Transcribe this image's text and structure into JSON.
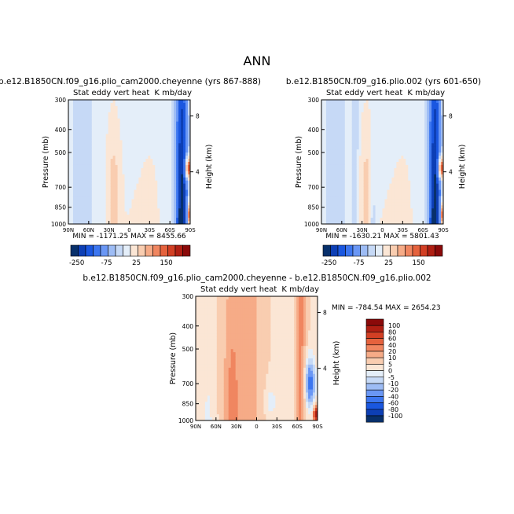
{
  "figure_title": "ANN",
  "palette_colors": [
    "#08306b",
    "#0d3fb5",
    "#1a57e0",
    "#3c76f0",
    "#6a97f5",
    "#9dbcf5",
    "#c6d9f6",
    "#e4eef9",
    "#fbe6d5",
    "#f9cdb0",
    "#f6ab87",
    "#f08660",
    "#e5623d",
    "#d23f24",
    "#b01f13",
    "#8b0a0a"
  ],
  "chart_data": [
    {
      "type": "contour",
      "title": "b.e12.B1850CN.f09_g16.plio_cam2000.cheyenne (yrs 867-888)",
      "left_label": "Stat eddy vert heat",
      "right_label": "K mb/day",
      "ylabel": "Pressure (mb)",
      "ylabel_right": "Height (km)",
      "yticks": [
        "300",
        "400",
        "500",
        "700",
        "850",
        "1000"
      ],
      "yticks_right": [
        "8",
        "4"
      ],
      "xticks": [
        "90N",
        "60N",
        "30N",
        "0",
        "30S",
        "60S",
        "90S"
      ],
      "stats": "MIN = -1171.25   MAX = 8455.66",
      "colorbar_labels": [
        "-250",
        "-75",
        "25",
        "150"
      ]
    },
    {
      "type": "contour",
      "title": "b.e12.B1850CN.f09_g16.plio.002 (yrs 601-650)",
      "left_label": "Stat eddy vert heat",
      "right_label": "K mb/day",
      "ylabel": "Pressure (mb)",
      "ylabel_right": "Height (km)",
      "yticks": [
        "300",
        "400",
        "500",
        "700",
        "850",
        "1000"
      ],
      "yticks_right": [
        "8",
        "4"
      ],
      "xticks": [
        "90N",
        "60N",
        "30N",
        "0",
        "30S",
        "60S",
        "90S"
      ],
      "stats": "MIN = -1630.21   MAX = 5801.43",
      "colorbar_labels": [
        "-250",
        "-75",
        "25",
        "150"
      ]
    },
    {
      "type": "contour",
      "title": "b.e12.B1850CN.f09_g16.plio_cam2000.cheyenne - b.e12.B1850CN.f09_g16.plio.002",
      "left_label": "Stat eddy vert heat",
      "right_label": "K mb/day",
      "ylabel": "Pressure (mb)",
      "ylabel_right": "Height (km)",
      "yticks": [
        "300",
        "400",
        "500",
        "700",
        "850",
        "1000"
      ],
      "yticks_right": [
        "8",
        "4"
      ],
      "xticks": [
        "90N",
        "60N",
        "30N",
        "0",
        "30S",
        "60S",
        "90S"
      ],
      "stats": "MIN = -784.54   MAX = 2654.23",
      "colorbar_labels": [
        "100",
        "80",
        "60",
        "40",
        "20",
        "10",
        "5",
        "0",
        "-5",
        "-10",
        "-20",
        "-40",
        "-60",
        "-80",
        "-100"
      ]
    }
  ]
}
